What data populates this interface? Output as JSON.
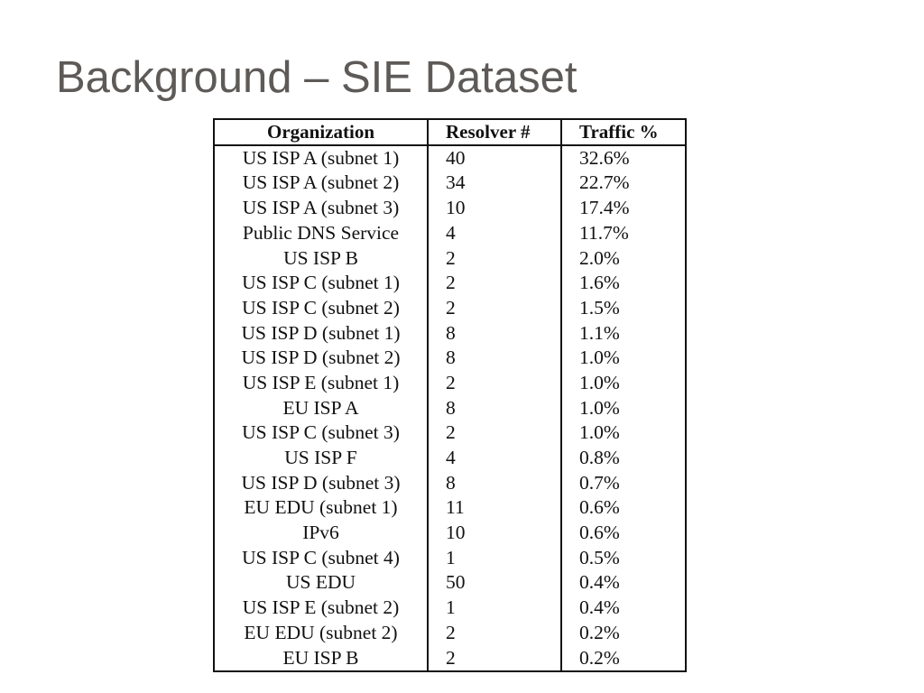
{
  "slide": {
    "title": "Background – SIE Dataset"
  },
  "table": {
    "headers": {
      "organization": "Organization",
      "resolvers": "Resolver #",
      "traffic": "Traffic %"
    },
    "rows": [
      {
        "organization": "US ISP A (subnet 1)",
        "resolvers": "40",
        "traffic": "32.6%"
      },
      {
        "organization": "US ISP A (subnet 2)",
        "resolvers": "34",
        "traffic": "22.7%"
      },
      {
        "organization": "US ISP A (subnet 3)",
        "resolvers": "10",
        "traffic": "17.4%"
      },
      {
        "organization": "Public DNS Service",
        "resolvers": "4",
        "traffic": "11.7%"
      },
      {
        "organization": "US ISP B",
        "resolvers": "2",
        "traffic": "2.0%"
      },
      {
        "organization": "US ISP C (subnet 1)",
        "resolvers": "2",
        "traffic": "1.6%"
      },
      {
        "organization": "US ISP C (subnet 2)",
        "resolvers": "2",
        "traffic": "1.5%"
      },
      {
        "organization": "US ISP D (subnet 1)",
        "resolvers": "8",
        "traffic": "1.1%"
      },
      {
        "organization": "US ISP D (subnet 2)",
        "resolvers": "8",
        "traffic": "1.0%"
      },
      {
        "organization": "US ISP E (subnet 1)",
        "resolvers": "2",
        "traffic": "1.0%"
      },
      {
        "organization": "EU ISP A",
        "resolvers": "8",
        "traffic": "1.0%"
      },
      {
        "organization": "US ISP C (subnet 3)",
        "resolvers": "2",
        "traffic": "1.0%"
      },
      {
        "organization": "US ISP F",
        "resolvers": "4",
        "traffic": "0.8%"
      },
      {
        "organization": "US ISP D (subnet 3)",
        "resolvers": "8",
        "traffic": "0.7%"
      },
      {
        "organization": "EU EDU (subnet 1)",
        "resolvers": "11",
        "traffic": "0.6%"
      },
      {
        "organization": "IPv6",
        "resolvers": "10",
        "traffic": "0.6%"
      },
      {
        "organization": "US ISP C (subnet 4)",
        "resolvers": "1",
        "traffic": "0.5%"
      },
      {
        "organization": "US EDU",
        "resolvers": "50",
        "traffic": "0.4%"
      },
      {
        "organization": "US ISP E (subnet 2)",
        "resolvers": "1",
        "traffic": "0.4%"
      },
      {
        "organization": "EU EDU (subnet 2)",
        "resolvers": "2",
        "traffic": "0.2%"
      },
      {
        "organization": "EU ISP B",
        "resolvers": "2",
        "traffic": "0.2%"
      }
    ]
  }
}
